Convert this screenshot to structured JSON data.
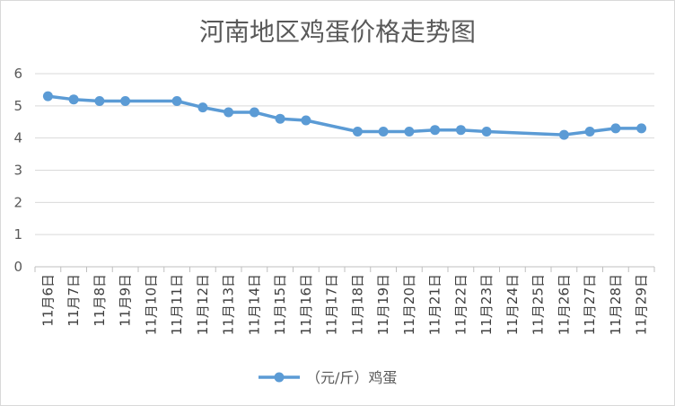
{
  "chart_data": {
    "type": "line",
    "title": "河南地区鸡蛋价格走势图",
    "xlabel": "",
    "ylabel": "",
    "ylim": [
      0,
      6
    ],
    "yticks": [
      0,
      1,
      2,
      3,
      4,
      5,
      6
    ],
    "grid": true,
    "legend_position": "bottom",
    "categories": [
      "11月6日",
      "11月7日",
      "11月8日",
      "11月9日",
      "11月10日",
      "11月11日",
      "11月12日",
      "11月13日",
      "11月14日",
      "11月15日",
      "11月16日",
      "11月17日",
      "11月18日",
      "11月19日",
      "11月20日",
      "11月21日",
      "11月22日",
      "11月23日",
      "11月24日",
      "11月25日",
      "11月26日",
      "11月27日",
      "11月28日",
      "11月29日"
    ],
    "series": [
      {
        "name": "（元/斤）鸡蛋",
        "color": "#5b9bd5",
        "values": [
          5.3,
          5.2,
          5.15,
          5.15,
          null,
          5.15,
          4.95,
          4.8,
          4.8,
          4.6,
          4.55,
          null,
          4.2,
          4.2,
          4.2,
          4.25,
          4.25,
          4.2,
          null,
          null,
          4.1,
          4.2,
          4.3,
          4.3
        ]
      }
    ]
  }
}
